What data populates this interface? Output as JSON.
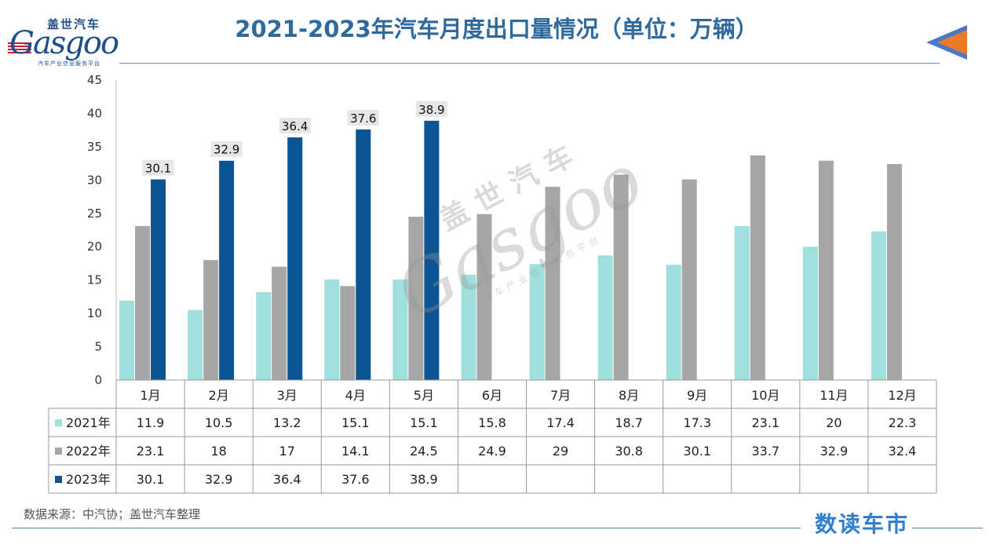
{
  "header": {
    "title": "2021-2023年汽车月度出口量情况（单位：万辆）",
    "logo_cn": "盖世汽车",
    "logo_en": "Gasgoo",
    "logo_sub": "汽车产业信息服务平台"
  },
  "watermark": {
    "cn": "盖世汽车",
    "en": "Gasgoo",
    "sub": "汽车产业信息服务平台"
  },
  "footer": {
    "source": "数据来源：中汽协；盖世汽车整理",
    "brand": "数读车市"
  },
  "colors": {
    "title": "#2e6a9e",
    "s2021": "#9fe0dc",
    "s2022": "#a6a6a6",
    "s2023": "#0d5592"
  },
  "chart_data": {
    "type": "bar",
    "categories": [
      "1月",
      "2月",
      "3月",
      "4月",
      "5月",
      "6月",
      "7月",
      "8月",
      "9月",
      "10月",
      "11月",
      "12月"
    ],
    "series": [
      {
        "name": "2021年",
        "color": "#9fe0dc",
        "values": [
          11.9,
          10.5,
          13.2,
          15.1,
          15.1,
          15.8,
          17.4,
          18.7,
          17.3,
          23.1,
          20,
          22.3
        ]
      },
      {
        "name": "2022年",
        "color": "#a6a6a6",
        "values": [
          23.1,
          18,
          17,
          14.1,
          24.5,
          24.9,
          29,
          30.8,
          30.1,
          33.7,
          32.9,
          32.4
        ]
      },
      {
        "name": "2023年",
        "color": "#0d5592",
        "values": [
          30.1,
          32.9,
          36.4,
          37.6,
          38.9,
          null,
          null,
          null,
          null,
          null,
          null,
          null
        ]
      }
    ],
    "ylim": [
      0,
      45
    ],
    "yticks": [
      0,
      5,
      10,
      15,
      20,
      25,
      30,
      35,
      40,
      45
    ],
    "data_labels_series": "2023年",
    "table_below": true,
    "grid": false
  }
}
